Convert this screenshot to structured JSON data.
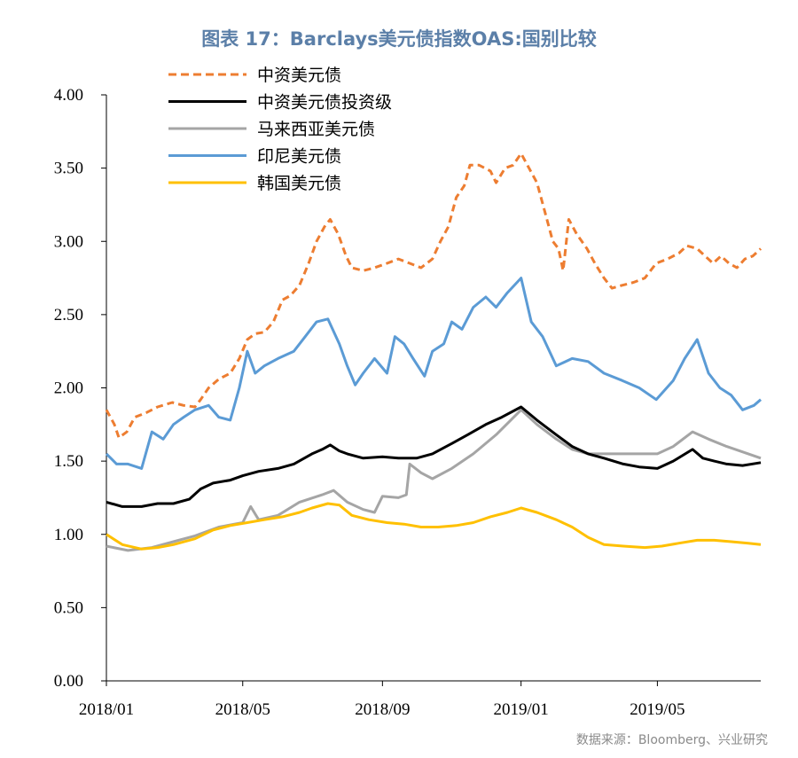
{
  "chart_data": {
    "type": "line",
    "title": "图表 17：Barclays美元债指数OAS:国别比较",
    "source": "数据来源：Bloomberg、兴业研究",
    "xlabel": "",
    "ylabel": "",
    "ylim": [
      0,
      4
    ],
    "xlim": [
      "2018-01-01",
      "2019-07-31"
    ],
    "yticks": [
      "0.00",
      "0.50",
      "1.00",
      "1.50",
      "2.00",
      "2.50",
      "3.00",
      "3.50",
      "4.00"
    ],
    "xticks": [
      {
        "date": "2018-01-01",
        "label": "2018/01"
      },
      {
        "date": "2018-05-01",
        "label": "2018/05"
      },
      {
        "date": "2018-09-01",
        "label": "2018/09"
      },
      {
        "date": "2019-01-01",
        "label": "2019/01"
      },
      {
        "date": "2019-05-01",
        "label": "2019/05"
      }
    ],
    "grid": false,
    "legend_position": "top-left",
    "series": [
      {
        "name": "中资美元债",
        "color": "#ED7D31",
        "dash": true,
        "points": [
          [
            "2018-01-01",
            1.85
          ],
          [
            "2018-01-08",
            1.75
          ],
          [
            "2018-01-12",
            1.66
          ],
          [
            "2018-01-19",
            1.7
          ],
          [
            "2018-01-26",
            1.8
          ],
          [
            "2018-02-05",
            1.83
          ],
          [
            "2018-02-15",
            1.87
          ],
          [
            "2018-02-28",
            1.9
          ],
          [
            "2018-03-10",
            1.88
          ],
          [
            "2018-03-20",
            1.87
          ],
          [
            "2018-03-25",
            1.92
          ],
          [
            "2018-04-01",
            2.0
          ],
          [
            "2018-04-10",
            2.06
          ],
          [
            "2018-04-20",
            2.1
          ],
          [
            "2018-04-28",
            2.2
          ],
          [
            "2018-05-05",
            2.33
          ],
          [
            "2018-05-12",
            2.37
          ],
          [
            "2018-05-20",
            2.38
          ],
          [
            "2018-05-28",
            2.45
          ],
          [
            "2018-06-05",
            2.6
          ],
          [
            "2018-06-12",
            2.63
          ],
          [
            "2018-06-20",
            2.7
          ],
          [
            "2018-06-28",
            2.85
          ],
          [
            "2018-07-05",
            3.0
          ],
          [
            "2018-07-12",
            3.1
          ],
          [
            "2018-07-17",
            3.15
          ],
          [
            "2018-07-24",
            3.05
          ],
          [
            "2018-07-31",
            2.9
          ],
          [
            "2018-08-05",
            2.82
          ],
          [
            "2018-08-15",
            2.8
          ],
          [
            "2018-08-25",
            2.82
          ],
          [
            "2018-09-05",
            2.85
          ],
          [
            "2018-09-15",
            2.88
          ],
          [
            "2018-09-25",
            2.85
          ],
          [
            "2018-10-05",
            2.82
          ],
          [
            "2018-10-15",
            2.88
          ],
          [
            "2018-10-22",
            3.0
          ],
          [
            "2018-10-29",
            3.1
          ],
          [
            "2018-11-05",
            3.3
          ],
          [
            "2018-11-12",
            3.38
          ],
          [
            "2018-11-17",
            3.52
          ],
          [
            "2018-11-25",
            3.52
          ],
          [
            "2018-12-05",
            3.48
          ],
          [
            "2018-12-10",
            3.4
          ],
          [
            "2018-12-18",
            3.5
          ],
          [
            "2018-12-25",
            3.52
          ],
          [
            "2019-01-01",
            3.6
          ],
          [
            "2019-01-08",
            3.5
          ],
          [
            "2019-01-15",
            3.4
          ],
          [
            "2019-01-22",
            3.2
          ],
          [
            "2019-01-29",
            3.0
          ],
          [
            "2019-02-03",
            2.95
          ],
          [
            "2019-02-07",
            2.8
          ],
          [
            "2019-02-12",
            3.15
          ],
          [
            "2019-02-19",
            3.05
          ],
          [
            "2019-02-28",
            2.95
          ],
          [
            "2019-03-07",
            2.85
          ],
          [
            "2019-03-15",
            2.75
          ],
          [
            "2019-03-22",
            2.68
          ],
          [
            "2019-03-31",
            2.7
          ],
          [
            "2019-04-10",
            2.72
          ],
          [
            "2019-04-20",
            2.75
          ],
          [
            "2019-04-30",
            2.85
          ],
          [
            "2019-05-10",
            2.88
          ],
          [
            "2019-05-20",
            2.92
          ],
          [
            "2019-05-27",
            2.97
          ],
          [
            "2019-06-05",
            2.95
          ],
          [
            "2019-06-12",
            2.9
          ],
          [
            "2019-06-19",
            2.85
          ],
          [
            "2019-06-26",
            2.9
          ],
          [
            "2019-07-03",
            2.85
          ],
          [
            "2019-07-10",
            2.82
          ],
          [
            "2019-07-17",
            2.88
          ],
          [
            "2019-07-24",
            2.9
          ],
          [
            "2019-07-31",
            2.95
          ]
        ]
      },
      {
        "name": "中资美元债投资级",
        "color": "#000000",
        "dash": false,
        "points": [
          [
            "2018-01-01",
            1.22
          ],
          [
            "2018-01-15",
            1.19
          ],
          [
            "2018-02-01",
            1.19
          ],
          [
            "2018-02-15",
            1.21
          ],
          [
            "2018-03-01",
            1.21
          ],
          [
            "2018-03-15",
            1.24
          ],
          [
            "2018-03-25",
            1.31
          ],
          [
            "2018-04-05",
            1.35
          ],
          [
            "2018-04-20",
            1.37
          ],
          [
            "2018-05-01",
            1.4
          ],
          [
            "2018-05-15",
            1.43
          ],
          [
            "2018-06-01",
            1.45
          ],
          [
            "2018-06-15",
            1.48
          ],
          [
            "2018-07-01",
            1.55
          ],
          [
            "2018-07-10",
            1.58
          ],
          [
            "2018-07-17",
            1.61
          ],
          [
            "2018-07-25",
            1.57
          ],
          [
            "2018-08-01",
            1.55
          ],
          [
            "2018-08-15",
            1.52
          ],
          [
            "2018-09-01",
            1.53
          ],
          [
            "2018-09-15",
            1.52
          ],
          [
            "2018-10-01",
            1.52
          ],
          [
            "2018-10-15",
            1.55
          ],
          [
            "2018-11-01",
            1.62
          ],
          [
            "2018-11-15",
            1.68
          ],
          [
            "2018-12-01",
            1.75
          ],
          [
            "2018-12-15",
            1.8
          ],
          [
            "2019-01-01",
            1.87
          ],
          [
            "2019-01-15",
            1.78
          ],
          [
            "2019-02-01",
            1.68
          ],
          [
            "2019-02-15",
            1.6
          ],
          [
            "2019-03-01",
            1.55
          ],
          [
            "2019-03-15",
            1.52
          ],
          [
            "2019-04-01",
            1.48
          ],
          [
            "2019-04-15",
            1.46
          ],
          [
            "2019-05-01",
            1.45
          ],
          [
            "2019-05-15",
            1.5
          ],
          [
            "2019-06-01",
            1.58
          ],
          [
            "2019-06-10",
            1.52
          ],
          [
            "2019-06-20",
            1.5
          ],
          [
            "2019-07-01",
            1.48
          ],
          [
            "2019-07-15",
            1.47
          ],
          [
            "2019-07-31",
            1.49
          ]
        ]
      },
      {
        "name": "马来西亚美元债",
        "color": "#A5A5A5",
        "dash": false,
        "points": [
          [
            "2018-01-01",
            0.92
          ],
          [
            "2018-01-20",
            0.89
          ],
          [
            "2018-02-10",
            0.91
          ],
          [
            "2018-03-01",
            0.95
          ],
          [
            "2018-03-20",
            0.99
          ],
          [
            "2018-04-10",
            1.05
          ],
          [
            "2018-05-01",
            1.08
          ],
          [
            "2018-05-08",
            1.19
          ],
          [
            "2018-05-15",
            1.1
          ],
          [
            "2018-06-01",
            1.13
          ],
          [
            "2018-06-20",
            1.22
          ],
          [
            "2018-07-10",
            1.27
          ],
          [
            "2018-07-20",
            1.3
          ],
          [
            "2018-08-01",
            1.22
          ],
          [
            "2018-08-15",
            1.17
          ],
          [
            "2018-08-25",
            1.15
          ],
          [
            "2018-09-01",
            1.26
          ],
          [
            "2018-09-15",
            1.25
          ],
          [
            "2018-09-22",
            1.27
          ],
          [
            "2018-09-25",
            1.48
          ],
          [
            "2018-10-05",
            1.42
          ],
          [
            "2018-10-15",
            1.38
          ],
          [
            "2018-11-01",
            1.45
          ],
          [
            "2018-11-20",
            1.55
          ],
          [
            "2018-12-10",
            1.68
          ],
          [
            "2019-01-01",
            1.85
          ],
          [
            "2019-01-15",
            1.75
          ],
          [
            "2019-02-01",
            1.65
          ],
          [
            "2019-02-15",
            1.58
          ],
          [
            "2019-03-01",
            1.55
          ],
          [
            "2019-03-20",
            1.55
          ],
          [
            "2019-04-10",
            1.55
          ],
          [
            "2019-05-01",
            1.55
          ],
          [
            "2019-05-15",
            1.6
          ],
          [
            "2019-06-01",
            1.7
          ],
          [
            "2019-06-15",
            1.65
          ],
          [
            "2019-07-01",
            1.6
          ],
          [
            "2019-07-20",
            1.55
          ],
          [
            "2019-07-31",
            1.52
          ]
        ]
      },
      {
        "name": "印尼美元债",
        "color": "#5B9BD5",
        "dash": false,
        "points": [
          [
            "2018-01-01",
            1.55
          ],
          [
            "2018-01-10",
            1.48
          ],
          [
            "2018-01-20",
            1.48
          ],
          [
            "2018-02-01",
            1.45
          ],
          [
            "2018-02-10",
            1.7
          ],
          [
            "2018-02-20",
            1.65
          ],
          [
            "2018-03-01",
            1.75
          ],
          [
            "2018-03-10",
            1.8
          ],
          [
            "2018-03-20",
            1.85
          ],
          [
            "2018-04-01",
            1.88
          ],
          [
            "2018-04-10",
            1.8
          ],
          [
            "2018-04-20",
            1.78
          ],
          [
            "2018-04-28",
            2.0
          ],
          [
            "2018-05-05",
            2.25
          ],
          [
            "2018-05-12",
            2.1
          ],
          [
            "2018-05-20",
            2.15
          ],
          [
            "2018-06-01",
            2.2
          ],
          [
            "2018-06-15",
            2.25
          ],
          [
            "2018-06-25",
            2.35
          ],
          [
            "2018-07-05",
            2.45
          ],
          [
            "2018-07-15",
            2.47
          ],
          [
            "2018-07-25",
            2.3
          ],
          [
            "2018-08-01",
            2.15
          ],
          [
            "2018-08-08",
            2.02
          ],
          [
            "2018-08-15",
            2.1
          ],
          [
            "2018-08-25",
            2.2
          ],
          [
            "2018-09-05",
            2.1
          ],
          [
            "2018-09-12",
            2.35
          ],
          [
            "2018-09-20",
            2.3
          ],
          [
            "2018-09-28",
            2.2
          ],
          [
            "2018-10-08",
            2.08
          ],
          [
            "2018-10-15",
            2.25
          ],
          [
            "2018-10-25",
            2.3
          ],
          [
            "2018-11-01",
            2.45
          ],
          [
            "2018-11-10",
            2.4
          ],
          [
            "2018-11-20",
            2.55
          ],
          [
            "2018-12-01",
            2.62
          ],
          [
            "2018-12-10",
            2.55
          ],
          [
            "2018-12-20",
            2.65
          ],
          [
            "2019-01-01",
            2.75
          ],
          [
            "2019-01-10",
            2.45
          ],
          [
            "2019-01-20",
            2.35
          ],
          [
            "2019-02-01",
            2.15
          ],
          [
            "2019-02-15",
            2.2
          ],
          [
            "2019-03-01",
            2.18
          ],
          [
            "2019-03-15",
            2.1
          ],
          [
            "2019-03-31",
            2.05
          ],
          [
            "2019-04-15",
            2.0
          ],
          [
            "2019-04-30",
            1.92
          ],
          [
            "2019-05-15",
            2.05
          ],
          [
            "2019-05-25",
            2.2
          ],
          [
            "2019-06-05",
            2.33
          ],
          [
            "2019-06-15",
            2.1
          ],
          [
            "2019-06-25",
            2.0
          ],
          [
            "2019-07-05",
            1.95
          ],
          [
            "2019-07-15",
            1.85
          ],
          [
            "2019-07-25",
            1.88
          ],
          [
            "2019-07-31",
            1.92
          ]
        ]
      },
      {
        "name": "韩国美元债",
        "color": "#FFC000",
        "dash": false,
        "points": [
          [
            "2018-01-01",
            1.0
          ],
          [
            "2018-01-15",
            0.93
          ],
          [
            "2018-02-01",
            0.9
          ],
          [
            "2018-02-15",
            0.91
          ],
          [
            "2018-03-01",
            0.93
          ],
          [
            "2018-03-20",
            0.97
          ],
          [
            "2018-04-05",
            1.03
          ],
          [
            "2018-04-20",
            1.06
          ],
          [
            "2018-05-05",
            1.08
          ],
          [
            "2018-05-20",
            1.1
          ],
          [
            "2018-06-05",
            1.12
          ],
          [
            "2018-06-20",
            1.15
          ],
          [
            "2018-07-01",
            1.18
          ],
          [
            "2018-07-15",
            1.21
          ],
          [
            "2018-07-25",
            1.2
          ],
          [
            "2018-08-05",
            1.13
          ],
          [
            "2018-08-20",
            1.1
          ],
          [
            "2018-09-05",
            1.08
          ],
          [
            "2018-09-20",
            1.07
          ],
          [
            "2018-10-05",
            1.05
          ],
          [
            "2018-10-20",
            1.05
          ],
          [
            "2018-11-05",
            1.06
          ],
          [
            "2018-11-20",
            1.08
          ],
          [
            "2018-12-05",
            1.12
          ],
          [
            "2018-12-20",
            1.15
          ],
          [
            "2019-01-01",
            1.18
          ],
          [
            "2019-01-15",
            1.15
          ],
          [
            "2019-02-01",
            1.1
          ],
          [
            "2019-02-15",
            1.05
          ],
          [
            "2019-03-01",
            0.98
          ],
          [
            "2019-03-15",
            0.93
          ],
          [
            "2019-04-01",
            0.92
          ],
          [
            "2019-04-20",
            0.91
          ],
          [
            "2019-05-05",
            0.92
          ],
          [
            "2019-05-20",
            0.94
          ],
          [
            "2019-06-05",
            0.96
          ],
          [
            "2019-06-20",
            0.96
          ],
          [
            "2019-07-05",
            0.95
          ],
          [
            "2019-07-20",
            0.94
          ],
          [
            "2019-07-31",
            0.93
          ]
        ]
      }
    ]
  }
}
